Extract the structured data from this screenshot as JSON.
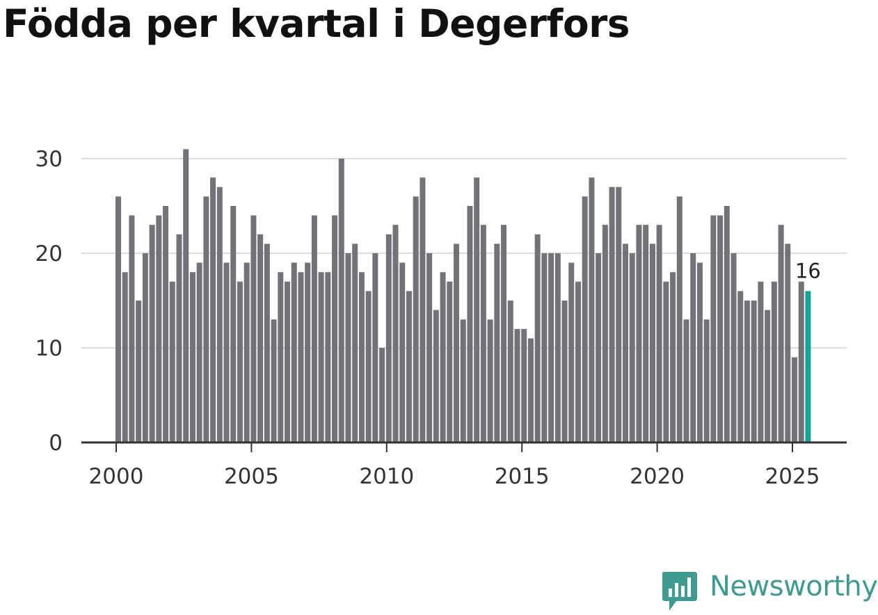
{
  "brand": {
    "name": "Newsworthy",
    "color": "#3f9a91"
  },
  "chart_data": {
    "type": "bar",
    "title": "Födda per kvartal i Degerfors",
    "xlabel": "",
    "ylabel": "",
    "ylim": [
      0,
      32
    ],
    "yticks": [
      0,
      10,
      20,
      30
    ],
    "xticks": [
      "2000",
      "2005",
      "2010",
      "2015",
      "2020",
      "2025"
    ],
    "grid": true,
    "bar_color": "#737277",
    "highlight_color": "#17a398",
    "highlight_label": "16",
    "categories": [
      "2000 Q1",
      "2000 Q2",
      "2000 Q3",
      "2000 Q4",
      "2001 Q1",
      "2001 Q2",
      "2001 Q3",
      "2001 Q4",
      "2002 Q1",
      "2002 Q2",
      "2002 Q3",
      "2002 Q4",
      "2003 Q1",
      "2003 Q2",
      "2003 Q3",
      "2003 Q4",
      "2004 Q1",
      "2004 Q2",
      "2004 Q3",
      "2004 Q4",
      "2005 Q1",
      "2005 Q2",
      "2005 Q3",
      "2005 Q4",
      "2006 Q1",
      "2006 Q2",
      "2006 Q3",
      "2006 Q4",
      "2007 Q1",
      "2007 Q2",
      "2007 Q3",
      "2007 Q4",
      "2008 Q1",
      "2008 Q2",
      "2008 Q3",
      "2008 Q4",
      "2009 Q1",
      "2009 Q2",
      "2009 Q3",
      "2009 Q4",
      "2010 Q1",
      "2010 Q2",
      "2010 Q3",
      "2010 Q4",
      "2011 Q1",
      "2011 Q2",
      "2011 Q3",
      "2011 Q4",
      "2012 Q1",
      "2012 Q2",
      "2012 Q3",
      "2012 Q4",
      "2013 Q1",
      "2013 Q2",
      "2013 Q3",
      "2013 Q4",
      "2014 Q1",
      "2014 Q2",
      "2014 Q3",
      "2014 Q4",
      "2015 Q1",
      "2015 Q2",
      "2015 Q3",
      "2015 Q4",
      "2016 Q1",
      "2016 Q2",
      "2016 Q3",
      "2016 Q4",
      "2017 Q1",
      "2017 Q2",
      "2017 Q3",
      "2017 Q4",
      "2018 Q1",
      "2018 Q2",
      "2018 Q3",
      "2018 Q4",
      "2019 Q1",
      "2019 Q2",
      "2019 Q3",
      "2019 Q4",
      "2020 Q1",
      "2020 Q2",
      "2020 Q3",
      "2020 Q4",
      "2021 Q1",
      "2021 Q2",
      "2021 Q3",
      "2021 Q4",
      "2022 Q1",
      "2022 Q2",
      "2022 Q3",
      "2022 Q4",
      "2023 Q1",
      "2023 Q2",
      "2023 Q3",
      "2023 Q4",
      "2024 Q1",
      "2024 Q2",
      "2024 Q3",
      "2024 Q4",
      "2025 Q1",
      "2025 Q2",
      "2025 Q3"
    ],
    "values": [
      26,
      18,
      24,
      15,
      20,
      23,
      24,
      25,
      17,
      22,
      31,
      18,
      19,
      26,
      28,
      27,
      19,
      25,
      17,
      19,
      24,
      22,
      21,
      13,
      18,
      17,
      19,
      18,
      19,
      24,
      18,
      18,
      24,
      30,
      20,
      21,
      18,
      16,
      20,
      10,
      22,
      23,
      19,
      16,
      26,
      28,
      20,
      14,
      18,
      17,
      21,
      13,
      25,
      28,
      23,
      13,
      21,
      23,
      15,
      12,
      12,
      11,
      22,
      20,
      20,
      20,
      15,
      19,
      17,
      26,
      28,
      20,
      23,
      27,
      27,
      21,
      20,
      23,
      23,
      21,
      23,
      17,
      18,
      26,
      13,
      20,
      19,
      13,
      24,
      24,
      25,
      20,
      16,
      15,
      15,
      17,
      14,
      17,
      23,
      21,
      9,
      17,
      16
    ]
  }
}
